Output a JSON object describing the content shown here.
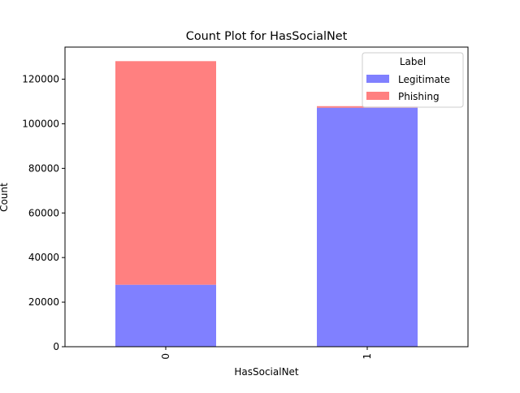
{
  "chart_data": {
    "type": "bar",
    "stacked": true,
    "title": "Count Plot for HasSocialNet",
    "xlabel": "HasSocialNet",
    "ylabel": "Count",
    "categories": [
      "0",
      "1"
    ],
    "series": [
      {
        "name": "Legitimate",
        "values": [
          27800,
          107200
        ],
        "color": "#8080ff"
      },
      {
        "name": "Phishing",
        "values": [
          100300,
          700
        ],
        "color": "#ff8080"
      }
    ],
    "ylim": [
      0,
      134400
    ],
    "yticks": [
      0,
      20000,
      40000,
      60000,
      80000,
      100000,
      120000
    ],
    "legend": {
      "title": "Label",
      "position": "top-right"
    },
    "grid": false
  }
}
